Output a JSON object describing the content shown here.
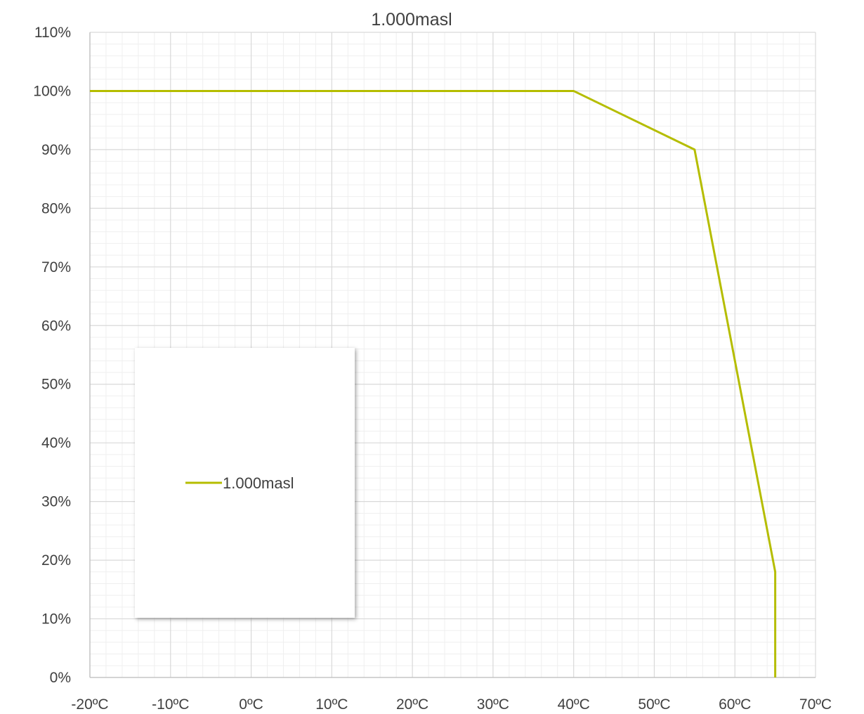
{
  "chart_data": {
    "type": "line",
    "title": "1.000masl",
    "xlabel": "",
    "ylabel": "",
    "x_tick_labels": [
      "-20ºC",
      "-10ºC",
      "0ºC",
      "10ºC",
      "20ºC",
      "30ºC",
      "40ºC",
      "50ºC",
      "60ºC",
      "70ºC"
    ],
    "y_tick_labels": [
      "0%",
      "10%",
      "20%",
      "30%",
      "40%",
      "50%",
      "60%",
      "70%",
      "80%",
      "90%",
      "100%",
      "110%"
    ],
    "xlim": [
      -20,
      70
    ],
    "ylim": [
      0,
      110
    ],
    "grid": true,
    "legend": {
      "placement": "left-center",
      "entries": [
        "1.000masl"
      ]
    },
    "series": [
      {
        "name": "1.000masl",
        "color": "#b5bd00",
        "x": [
          -20,
          40,
          55,
          65,
          65
        ],
        "y": [
          100,
          100,
          90,
          18,
          0
        ]
      }
    ]
  }
}
